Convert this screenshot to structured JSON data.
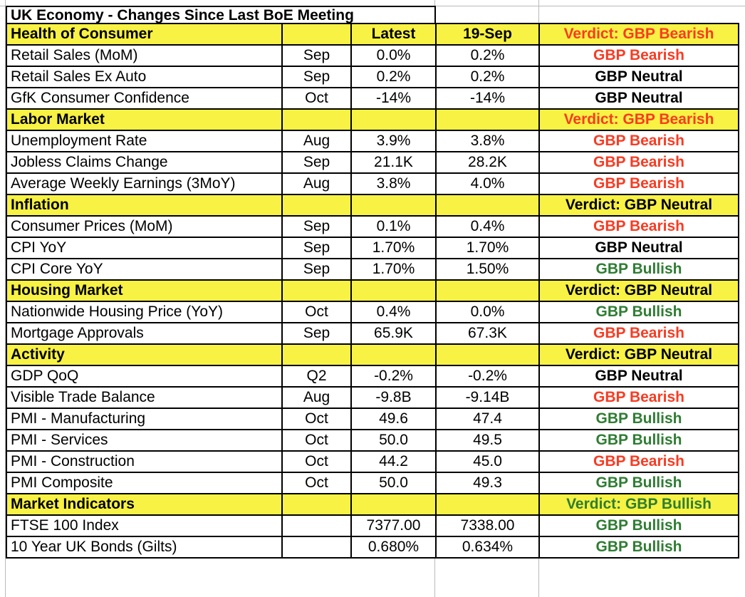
{
  "sheet": {
    "title": "UK Economy - Changes Since Last BoE Meeting"
  },
  "columns": {
    "latest": "Latest",
    "prev": "19-Sep"
  },
  "colors": {
    "section_bg": "#f7f243",
    "bearish_text": "#f93b22",
    "bullish_text": "#2e7d32",
    "neutral_text": "#000000",
    "table_border": "#000000",
    "sheet_gridline": "#b9b9b9"
  },
  "sections": [
    {
      "name": "Health of Consumer",
      "verdict": "Verdict: GBP Bearish",
      "verdict_tone": "bearish",
      "show_column_headers": true,
      "rows": [
        {
          "label": "Retail Sales (MoM)",
          "month": "Sep",
          "latest": "0.0%",
          "prev": "0.2%",
          "verdict": "GBP Bearish",
          "tone": "bearish"
        },
        {
          "label": "Retail Sales Ex Auto",
          "month": "Sep",
          "latest": "0.2%",
          "prev": "0.2%",
          "verdict": "GBP Neutral",
          "tone": "neutral"
        },
        {
          "label": "GfK Consumer Confidence",
          "month": "Oct",
          "latest": "-14%",
          "prev": "-14%",
          "verdict": "GBP Neutral",
          "tone": "neutral"
        }
      ]
    },
    {
      "name": "Labor Market",
      "verdict": "Verdict: GBP Bearish",
      "verdict_tone": "bearish",
      "show_column_headers": false,
      "rows": [
        {
          "label": "Unemployment Rate",
          "month": "Aug",
          "latest": "3.9%",
          "prev": "3.8%",
          "verdict": "GBP Bearish",
          "tone": "bearish"
        },
        {
          "label": "Jobless Claims Change",
          "month": "Sep",
          "latest": "21.1K",
          "prev": "28.2K",
          "verdict": "GBP Bearish",
          "tone": "bearish"
        },
        {
          "label": "Average Weekly Earnings (3MoY)",
          "month": "Aug",
          "latest": "3.8%",
          "prev": "4.0%",
          "verdict": "GBP Bearish",
          "tone": "bearish"
        }
      ]
    },
    {
      "name": "Inflation",
      "verdict": "Verdict: GBP Neutral",
      "verdict_tone": "neutral",
      "show_column_headers": false,
      "rows": [
        {
          "label": "Consumer Prices (MoM)",
          "month": "Sep",
          "latest": "0.1%",
          "prev": "0.4%",
          "verdict": "GBP Bearish",
          "tone": "bearish"
        },
        {
          "label": "CPI YoY",
          "month": "Sep",
          "latest": "1.70%",
          "prev": "1.70%",
          "verdict": "GBP Neutral",
          "tone": "neutral"
        },
        {
          "label": "CPI Core YoY",
          "month": "Sep",
          "latest": "1.70%",
          "prev": "1.50%",
          "verdict": "GBP Bullish",
          "tone": "bullish"
        }
      ]
    },
    {
      "name": "Housing Market",
      "verdict": "Verdict: GBP Neutral",
      "verdict_tone": "neutral",
      "show_column_headers": false,
      "rows": [
        {
          "label": "Nationwide Housing Price (YoY)",
          "month": "Oct",
          "latest": "0.4%",
          "prev": "0.0%",
          "verdict": "GBP Bullish",
          "tone": "bullish"
        },
        {
          "label": "Mortgage Approvals",
          "month": "Sep",
          "latest": "65.9K",
          "prev": "67.3K",
          "verdict": "GBP Bearish",
          "tone": "bearish"
        }
      ]
    },
    {
      "name": "Activity",
      "verdict": "Verdict: GBP Neutral",
      "verdict_tone": "neutral",
      "show_column_headers": false,
      "rows": [
        {
          "label": "GDP QoQ",
          "month": "Q2",
          "latest": "-0.2%",
          "prev": "-0.2%",
          "verdict": "GBP Neutral",
          "tone": "neutral"
        },
        {
          "label": "Visible Trade Balance",
          "month": "Aug",
          "latest": "-9.8B",
          "prev": "-9.14B",
          "verdict": "GBP Bearish",
          "tone": "bearish"
        },
        {
          "label": "PMI - Manufacturing",
          "month": "Oct",
          "latest": "49.6",
          "prev": "47.4",
          "verdict": "GBP Bullish",
          "tone": "bullish"
        },
        {
          "label": "PMI - Services",
          "month": "Oct",
          "latest": "50.0",
          "prev": "49.5",
          "verdict": "GBP Bullish",
          "tone": "bullish"
        },
        {
          "label": "PMI - Construction",
          "month": "Oct",
          "latest": "44.2",
          "prev": "45.0",
          "verdict": "GBP Bearish",
          "tone": "bearish"
        },
        {
          "label": "PMI Composite",
          "month": "Oct",
          "latest": "50.0",
          "prev": "49.3",
          "verdict": "GBP Bullish",
          "tone": "bullish"
        }
      ]
    },
    {
      "name": "Market Indicators",
      "verdict": "Verdict: GBP Bullish",
      "verdict_tone": "bullish",
      "show_column_headers": false,
      "rows": [
        {
          "label": "FTSE 100 Index",
          "month": "",
          "latest": "7377.00",
          "prev": "7338.00",
          "verdict": "GBP Bullish",
          "tone": "bullish"
        },
        {
          "label": "10 Year UK Bonds (Gilts)",
          "month": "",
          "latest": "0.680%",
          "prev": "0.634%",
          "verdict": "GBP Bullish",
          "tone": "bullish"
        }
      ]
    }
  ]
}
